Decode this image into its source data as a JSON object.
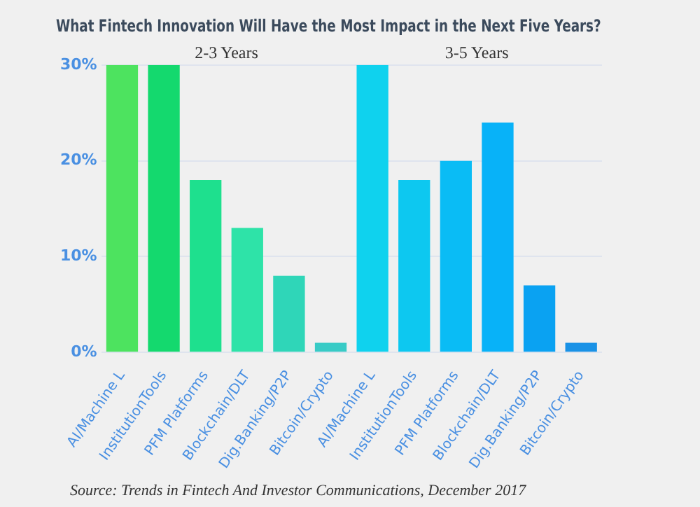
{
  "chart_data": {
    "type": "bar",
    "title": "What Fintech Innovation Will Have the Most Impact in the Next Five Years?",
    "categories": [
      "AI/Machine L",
      "InstitutionTools",
      "PFM Platforms",
      "Blockchain/DLT",
      "Dig.Banking/P2P",
      "Bitcoin/Crypto",
      "AI/Machine L",
      "InstitutionTools",
      "PFM Platforms",
      "Blockchain/DLT",
      "Dig.Banking/P2P",
      "Bitcoin/Crypto"
    ],
    "values": [
      30,
      30,
      18,
      13,
      8,
      1,
      30,
      18,
      20,
      24,
      7,
      1
    ],
    "colors": [
      "#4de35f",
      "#14d96e",
      "#1ee08e",
      "#2ee3a8",
      "#2fd6b8",
      "#38cbc6",
      "#0fd2ee",
      "#0dc8f0",
      "#0abcf5",
      "#08b2f8",
      "#0aa2f2",
      "#1a92e6"
    ],
    "ylim": [
      0,
      30
    ],
    "yticks": [
      {
        "value": 0,
        "label": "0%"
      },
      {
        "value": 10,
        "label": "10%"
      },
      {
        "value": 20,
        "label": "20%"
      },
      {
        "value": 30,
        "label": "30%"
      }
    ],
    "grid": "y",
    "annotations": [
      "2-3 Years",
      "3-5 Years",
      "Source: Trends in Fintech And Investor Communications, December 2017"
    ]
  }
}
